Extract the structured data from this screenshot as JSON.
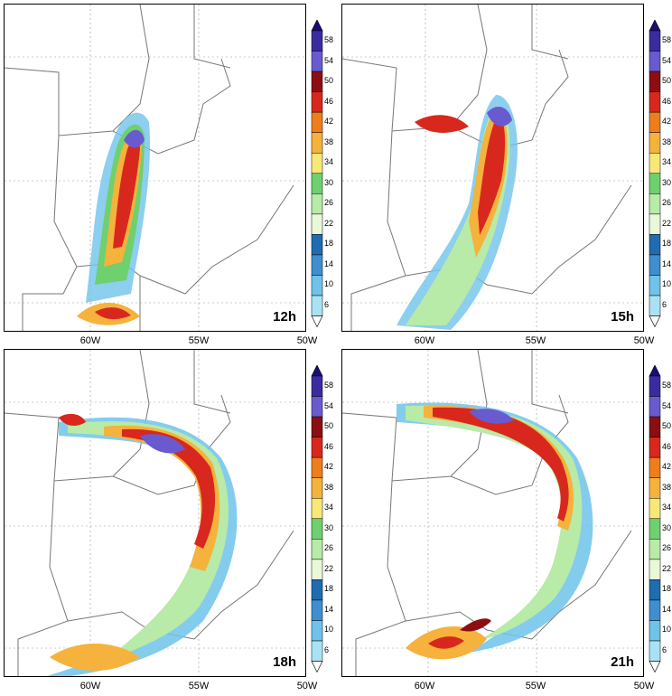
{
  "colors": {
    "scale": [
      "#ffffff",
      "#a9e3f3",
      "#6fc3ea",
      "#3f8fd0",
      "#1f6cb0",
      "#e8f8d8",
      "#b8eaa8",
      "#6fd06f",
      "#f8e878",
      "#f5b23c",
      "#ee7e1c",
      "#d8281e",
      "#8c0e12",
      "#6a5ad0",
      "#3a2ca0",
      "#1a0c78"
    ]
  },
  "colorbar": {
    "labels": [
      "58",
      "54",
      "50",
      "46",
      "42",
      "38",
      "34",
      "30",
      "26",
      "22",
      "18",
      "14",
      "10",
      "6"
    ]
  },
  "panels": [
    {
      "time": "12h",
      "xticks": [
        "60W",
        "55W",
        "50W"
      ]
    },
    {
      "time": "15h",
      "xticks": [
        "60W",
        "55W",
        "50W"
      ]
    },
    {
      "time": "18h",
      "xticks": [
        "60W",
        "55W",
        "50W"
      ]
    },
    {
      "time": "21h",
      "xticks": [
        "60W",
        "55W",
        "50W"
      ]
    }
  ]
}
